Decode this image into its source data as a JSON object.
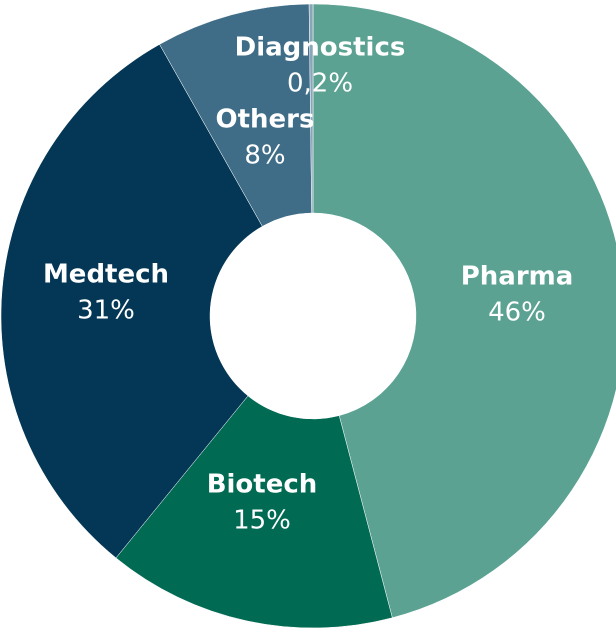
{
  "chart_data": {
    "type": "donut",
    "categories": [
      "Pharma",
      "Biotech",
      "Medtech",
      "Others",
      "Diagnostics"
    ],
    "values": [
      46,
      15,
      31,
      8,
      0.2
    ],
    "value_labels": [
      "46%",
      "15%",
      "31%",
      "8%",
      "0,2%"
    ],
    "colors": [
      "#5ba293",
      "#006a53",
      "#043756",
      "#3f6d87",
      "#8ba5b8"
    ]
  }
}
